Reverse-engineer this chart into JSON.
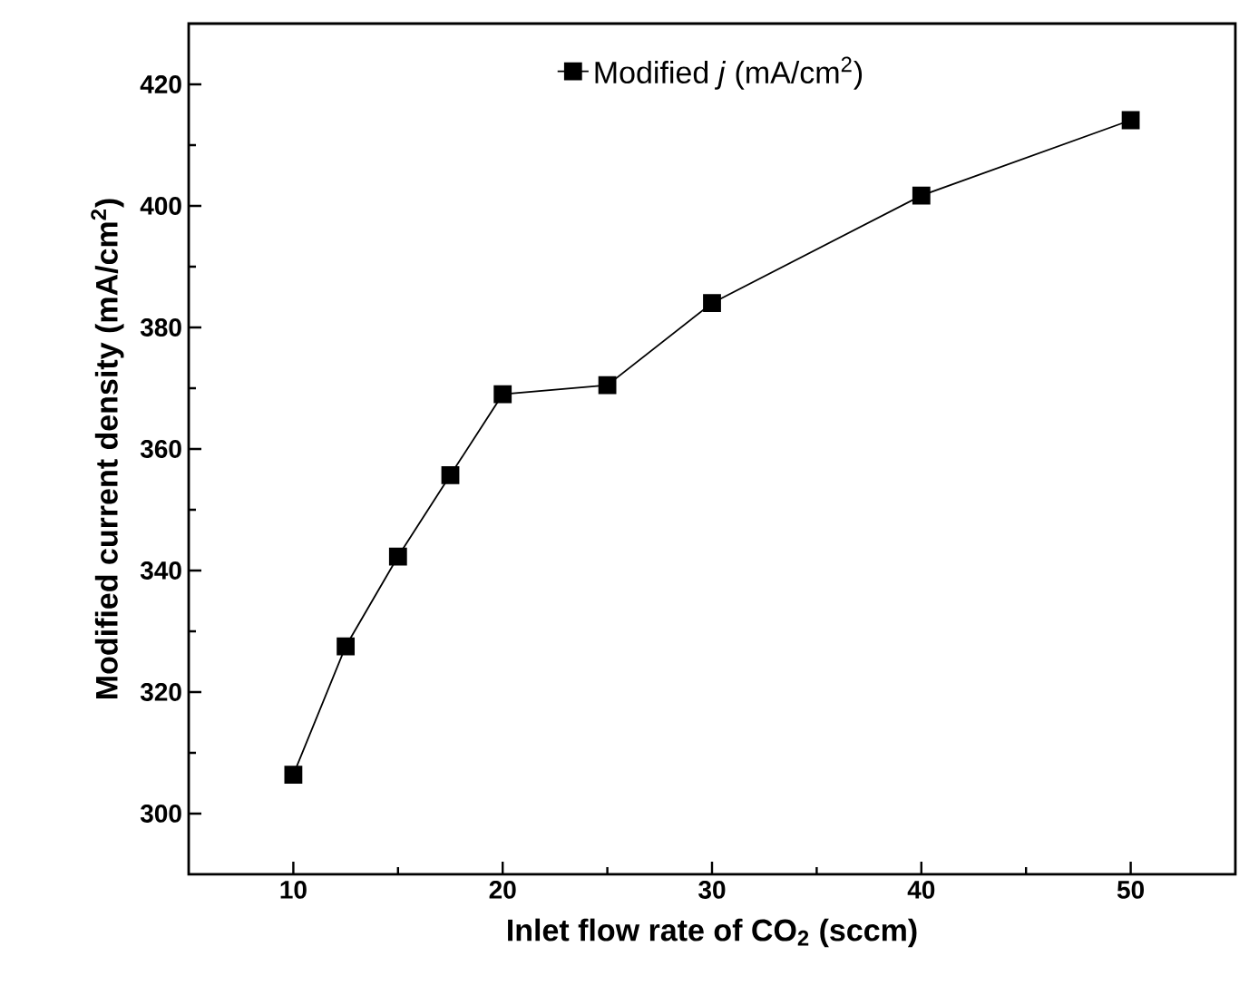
{
  "chart_data": {
    "type": "line",
    "xlabel": "Inlet flow rate of CO$_{2}$ (sccm)",
    "ylabel": "Modified current density (mA/cm$^{2}$)",
    "x": [
      10,
      12.5,
      15,
      17.5,
      20,
      25,
      30,
      40,
      50
    ],
    "series": [
      {
        "name": "Modified *j* (mA/cm$^{2}$)",
        "color": "#000000",
        "values": [
          306.4,
          327.5,
          342.3,
          355.7,
          369.0,
          370.5,
          384.0,
          401.7,
          414.1
        ]
      }
    ],
    "xlim": [
      5,
      55
    ],
    "ylim": [
      290,
      430
    ],
    "xticks": [
      10,
      20,
      30,
      40,
      50
    ],
    "yticks": [
      300,
      320,
      340,
      360,
      380,
      400,
      420
    ],
    "marker": "square",
    "line_style": "solid",
    "legend": "top",
    "grid": false
  }
}
